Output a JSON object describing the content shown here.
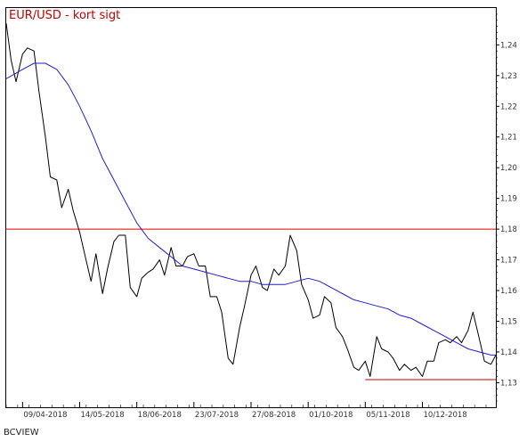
{
  "chart_data": {
    "type": "line",
    "title": "EUR/USD - kort sigt",
    "footer": "BCVIEW",
    "ylim": [
      1.122,
      1.252
    ],
    "yticks": [
      "1,24",
      "1,23",
      "1,22",
      "1,21",
      "1,20",
      "1,19",
      "1,18",
      "1,17",
      "1,16",
      "1,15",
      "1,14",
      "1,13"
    ],
    "ytick_values": [
      1.24,
      1.23,
      1.22,
      1.21,
      1.2,
      1.19,
      1.18,
      1.17,
      1.16,
      1.15,
      1.14,
      1.13
    ],
    "xticks": [
      "09/04-2018",
      "14/05-2018",
      "18/06-2018",
      "23/07-2018",
      "27/08-2018",
      "01/10-2018",
      "05/11-2018",
      "10/12-2018"
    ],
    "x_start": "2018-03-30",
    "x_end": "2019-01-24",
    "grid": false,
    "colors": {
      "price": "#000000",
      "moving_average": "#1f1fd0",
      "resistance": "#e00000",
      "support": "#c00000",
      "title": "#c00000"
    },
    "series": [
      {
        "style": "price",
        "x": [
          "2018-03-30",
          "2018-04-02",
          "2018-04-05",
          "2018-04-09",
          "2018-04-12",
          "2018-04-16",
          "2018-04-19",
          "2018-04-23",
          "2018-04-26",
          "2018-04-30",
          "2018-05-03",
          "2018-05-07",
          "2018-05-10",
          "2018-05-14",
          "2018-05-17",
          "2018-05-21",
          "2018-05-24",
          "2018-05-28",
          "2018-05-31",
          "2018-06-04",
          "2018-06-07",
          "2018-06-11",
          "2018-06-14",
          "2018-06-18",
          "2018-06-21",
          "2018-06-25",
          "2018-06-28",
          "2018-07-02",
          "2018-07-05",
          "2018-07-09",
          "2018-07-12",
          "2018-07-16",
          "2018-07-19",
          "2018-07-23",
          "2018-07-26",
          "2018-07-30",
          "2018-08-02",
          "2018-08-06",
          "2018-08-09",
          "2018-08-13",
          "2018-08-16",
          "2018-08-20",
          "2018-08-23",
          "2018-08-27",
          "2018-08-30",
          "2018-09-03",
          "2018-09-06",
          "2018-09-10",
          "2018-09-13",
          "2018-09-17",
          "2018-09-20",
          "2018-09-24",
          "2018-09-27",
          "2018-10-01",
          "2018-10-04",
          "2018-10-08",
          "2018-10-11",
          "2018-10-15",
          "2018-10-18",
          "2018-10-22",
          "2018-10-25",
          "2018-10-29",
          "2018-11-01",
          "2018-11-05",
          "2018-11-08",
          "2018-11-12",
          "2018-11-15",
          "2018-11-19",
          "2018-11-22",
          "2018-11-26",
          "2018-11-29",
          "2018-12-03",
          "2018-12-06",
          "2018-12-10",
          "2018-12-13",
          "2018-12-17",
          "2018-12-20",
          "2018-12-24",
          "2018-12-27",
          "2018-12-31",
          "2019-01-03",
          "2019-01-07",
          "2019-01-10",
          "2019-01-14",
          "2019-01-17",
          "2019-01-21",
          "2019-01-24"
        ],
        "y": [
          1.247,
          1.235,
          1.228,
          1.237,
          1.239,
          1.238,
          1.225,
          1.21,
          1.197,
          1.196,
          1.187,
          1.193,
          1.186,
          1.179,
          1.172,
          1.163,
          1.172,
          1.159,
          1.167,
          1.176,
          1.178,
          1.178,
          1.161,
          1.158,
          1.164,
          1.166,
          1.167,
          1.17,
          1.165,
          1.174,
          1.168,
          1.168,
          1.171,
          1.172,
          1.168,
          1.168,
          1.158,
          1.158,
          1.153,
          1.138,
          1.136,
          1.148,
          1.155,
          1.165,
          1.168,
          1.161,
          1.16,
          1.167,
          1.165,
          1.168,
          1.178,
          1.173,
          1.162,
          1.157,
          1.151,
          1.152,
          1.158,
          1.156,
          1.148,
          1.145,
          1.141,
          1.135,
          1.134,
          1.137,
          1.132,
          1.145,
          1.141,
          1.14,
          1.138,
          1.134,
          1.136,
          1.134,
          1.135,
          1.132,
          1.137,
          1.137,
          1.143,
          1.144,
          1.143,
          1.145,
          1.143,
          1.147,
          1.153,
          1.144,
          1.137,
          1.136,
          1.139
        ]
      },
      {
        "style": "moving_average",
        "x": [
          "2018-03-30",
          "2018-04-09",
          "2018-04-16",
          "2018-04-23",
          "2018-04-30",
          "2018-05-07",
          "2018-05-14",
          "2018-05-21",
          "2018-05-28",
          "2018-06-04",
          "2018-06-11",
          "2018-06-18",
          "2018-06-25",
          "2018-07-02",
          "2018-07-09",
          "2018-07-16",
          "2018-07-23",
          "2018-07-30",
          "2018-08-06",
          "2018-08-13",
          "2018-08-20",
          "2018-08-27",
          "2018-09-03",
          "2018-09-10",
          "2018-09-17",
          "2018-09-24",
          "2018-10-01",
          "2018-10-08",
          "2018-10-15",
          "2018-10-22",
          "2018-10-29",
          "2018-11-05",
          "2018-11-12",
          "2018-11-19",
          "2018-11-26",
          "2018-12-03",
          "2018-12-10",
          "2018-12-17",
          "2018-12-24",
          "2018-12-31",
          "2019-01-07",
          "2019-01-14",
          "2019-01-21",
          "2019-01-24"
        ],
        "y": [
          1.229,
          1.232,
          1.234,
          1.234,
          1.232,
          1.227,
          1.22,
          1.212,
          1.203,
          1.196,
          1.189,
          1.182,
          1.177,
          1.174,
          1.171,
          1.168,
          1.167,
          1.166,
          1.165,
          1.164,
          1.163,
          1.163,
          1.162,
          1.162,
          1.162,
          1.163,
          1.164,
          1.163,
          1.161,
          1.159,
          1.157,
          1.156,
          1.155,
          1.154,
          1.152,
          1.151,
          1.149,
          1.147,
          1.145,
          1.143,
          1.141,
          1.14,
          1.139,
          1.139
        ]
      }
    ],
    "levels": [
      {
        "style": "resistance",
        "value": 1.18,
        "from": "2018-03-30",
        "to": "2019-01-24"
      },
      {
        "style": "support",
        "value": 1.131,
        "from": "2018-11-05",
        "to": "2019-01-24"
      }
    ]
  }
}
